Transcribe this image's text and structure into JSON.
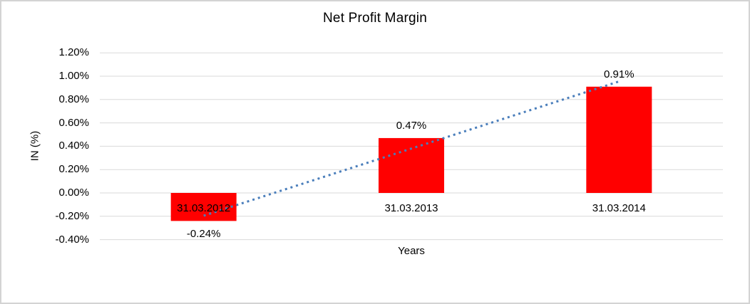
{
  "chart_data": {
    "type": "bar",
    "title": "Net Profit Margin",
    "xlabel": "Years",
    "ylabel": "IN (%)",
    "categories": [
      "31.03.2012",
      "31.03.2013",
      "31.03.2014"
    ],
    "values": [
      -0.24,
      0.47,
      0.91
    ],
    "data_labels": [
      "-0.24%",
      "0.47%",
      "0.91%"
    ],
    "y_tick_labels": [
      "1.20%",
      "1.00%",
      "0.80%",
      "0.60%",
      "0.40%",
      "0.20%",
      "0.00%",
      "-0.20%",
      "-0.40%"
    ],
    "y_tick_values": [
      1.2,
      1.0,
      0.8,
      0.6,
      0.4,
      0.2,
      0.0,
      -0.2,
      -0.4
    ],
    "ylim": [
      -0.4,
      1.2
    ],
    "grid": true,
    "legend": "none",
    "trendline": {
      "type": "linear",
      "style": "dotted"
    },
    "colors": {
      "bar": "#FF0000",
      "trendline": "#4A7EBB",
      "gridline": "#D9D9D9",
      "text": "#000000",
      "frame_border": "#D3D3D3",
      "background": "#FFFFFF"
    }
  }
}
